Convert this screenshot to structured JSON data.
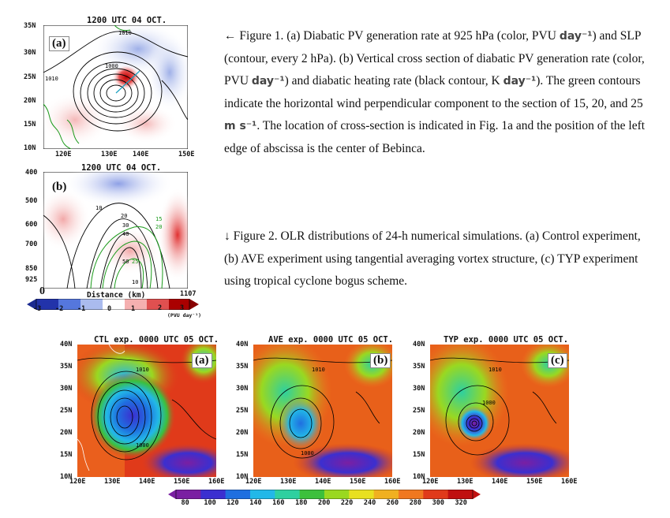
{
  "figure1": {
    "caption": {
      "arrow": "←",
      "part1": "Figure 1. (a) Diabatic PV generation rate at 925 hPa (color, PVU",
      "unit_day": "day⁻¹",
      "part2": ") and SLP (contour, every 2 hPa). (b) Vertical cross section of diabatic PV generation rate (color, PVU",
      "part3": ") and diabatic heating rate (black contour, K",
      "part4": "). The green contours indicate the horizontal wind perpendicular component to the section of 15, 20, and 25",
      "unit_ms": "m s⁻¹",
      "part5": ". The location of cross-section is indicated in Fig. 1a and the position of the left edge of abscissa is the center of Bebinca."
    },
    "panel_a": {
      "title": "1200 UTC 04 OCT.",
      "label": "(a)",
      "y_ticks": [
        "35N",
        "30N",
        "25N",
        "20N",
        "15N",
        "10N"
      ],
      "x_ticks": [
        "120E",
        "130E",
        "140E",
        "150E"
      ],
      "contour_labels": [
        "1010",
        "1000",
        "1010"
      ]
    },
    "panel_b": {
      "title": "1200 UTC 04 OCT.",
      "label": "(b)",
      "y_ticks": [
        "400",
        "500",
        "600",
        "700",
        "850",
        "925"
      ],
      "x_start": "0",
      "x_end": "1107",
      "xlabel": "Distance (km)",
      "contour_labels": [
        "10",
        "20",
        "30",
        "40",
        "15",
        "20",
        "50",
        "25",
        "10"
      ],
      "colorbar_ticks": [
        "-3",
        "-2",
        "-1",
        "0",
        "1",
        "2",
        "3"
      ],
      "colorbar_unit": "(PVU day⁻¹)",
      "colors": [
        "#2233aa",
        "#5577dd",
        "#aabbee",
        "#ffffff",
        "#f5b0b0",
        "#e05050",
        "#aa0000"
      ]
    }
  },
  "figure2": {
    "caption": {
      "arrow": "↓",
      "text": "Figure 2. OLR distributions of 24-h numerical simulations. (a) Control experiment, (b) AVE experiment using tangential averaging vortex structure, (c) TYP experiment using tropical cyclone bogus scheme."
    },
    "panels": [
      {
        "title": "CTL exp. 0000 UTC 05 OCT.",
        "label": "(a)",
        "contour_labels": [
          "1010",
          "1000"
        ]
      },
      {
        "title": "AVE exp. 0000 UTC 05 OCT.",
        "label": "(b)",
        "contour_labels": [
          "1010",
          "1000"
        ]
      },
      {
        "title": "TYP exp. 0000 UTC 05 OCT.",
        "label": "(c)",
        "contour_labels": [
          "1010",
          "1000"
        ]
      }
    ],
    "y_ticks": [
      "40N",
      "35N",
      "30N",
      "25N",
      "20N",
      "15N",
      "10N"
    ],
    "x_ticks": [
      "120E",
      "130E",
      "140E",
      "150E",
      "160E"
    ],
    "colorbar_ticks": [
      "80",
      "100",
      "120",
      "140",
      "160",
      "180",
      "200",
      "220",
      "240",
      "260",
      "280",
      "300",
      "320"
    ],
    "colors": [
      "#7a1fa2",
      "#3b2fd0",
      "#1f6fe0",
      "#22b8e8",
      "#2ed0a0",
      "#3cc03c",
      "#9ad820",
      "#e8e020",
      "#f0b020",
      "#f07820",
      "#e03a1a",
      "#c01010"
    ]
  }
}
